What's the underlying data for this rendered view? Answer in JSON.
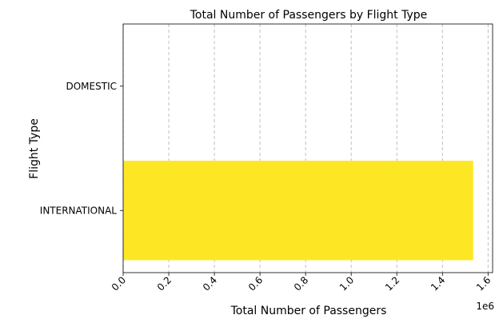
{
  "chart_data": {
    "type": "bar",
    "orientation": "horizontal",
    "title": "Total Number of Passengers by Flight Type",
    "xlabel": "Total Number of Passengers",
    "ylabel": "Flight Type",
    "categories": [
      "INTERNATIONAL",
      "DOMESTIC"
    ],
    "values": [
      1535000,
      0
    ],
    "xlim": [
      0,
      1620000
    ],
    "xticks": [
      "0.0",
      "0.2",
      "0.4",
      "0.6",
      "0.8",
      "1.0",
      "1.2",
      "1.4",
      "1.6"
    ],
    "xtick_values": [
      0,
      200000,
      400000,
      600000,
      800000,
      1000000,
      1200000,
      1400000,
      1600000
    ],
    "x_offset_label": "1e6",
    "bar_color": "#fde725",
    "grid": "x-axis dashed",
    "legend": "none"
  }
}
